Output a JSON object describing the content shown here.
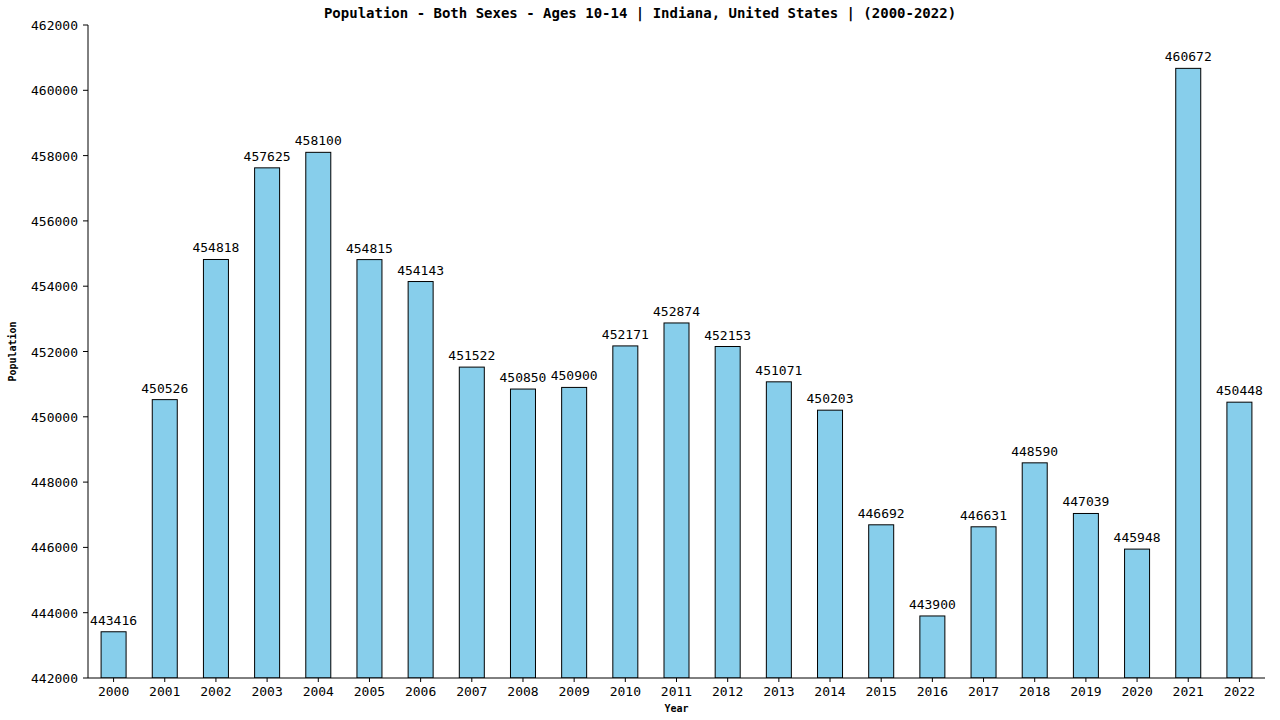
{
  "chart_data": {
    "type": "bar",
    "title": "Population - Both Sexes - Ages 10-14 | Indiana, United States |  (2000-2022)",
    "x_label": "Year",
    "y_label": "Population",
    "categories": [
      "2000",
      "2001",
      "2002",
      "2003",
      "2004",
      "2005",
      "2006",
      "2007",
      "2008",
      "2009",
      "2010",
      "2011",
      "2012",
      "2013",
      "2014",
      "2015",
      "2016",
      "2017",
      "2018",
      "2019",
      "2020",
      "2021",
      "2022"
    ],
    "values": [
      443416,
      450526,
      454818,
      457625,
      458100,
      454815,
      454143,
      451522,
      450850,
      450900,
      452171,
      452874,
      452153,
      451071,
      450203,
      446692,
      443900,
      446631,
      448590,
      447039,
      445948,
      460672,
      450448
    ],
    "color": "#87ceeb",
    "ylim": [
      442000,
      462000
    ],
    "yticks": [
      442000,
      444000,
      446000,
      448000,
      450000,
      452000,
      454000,
      456000,
      458000,
      460000,
      462000
    ],
    "grid": false,
    "data_labels": true
  }
}
